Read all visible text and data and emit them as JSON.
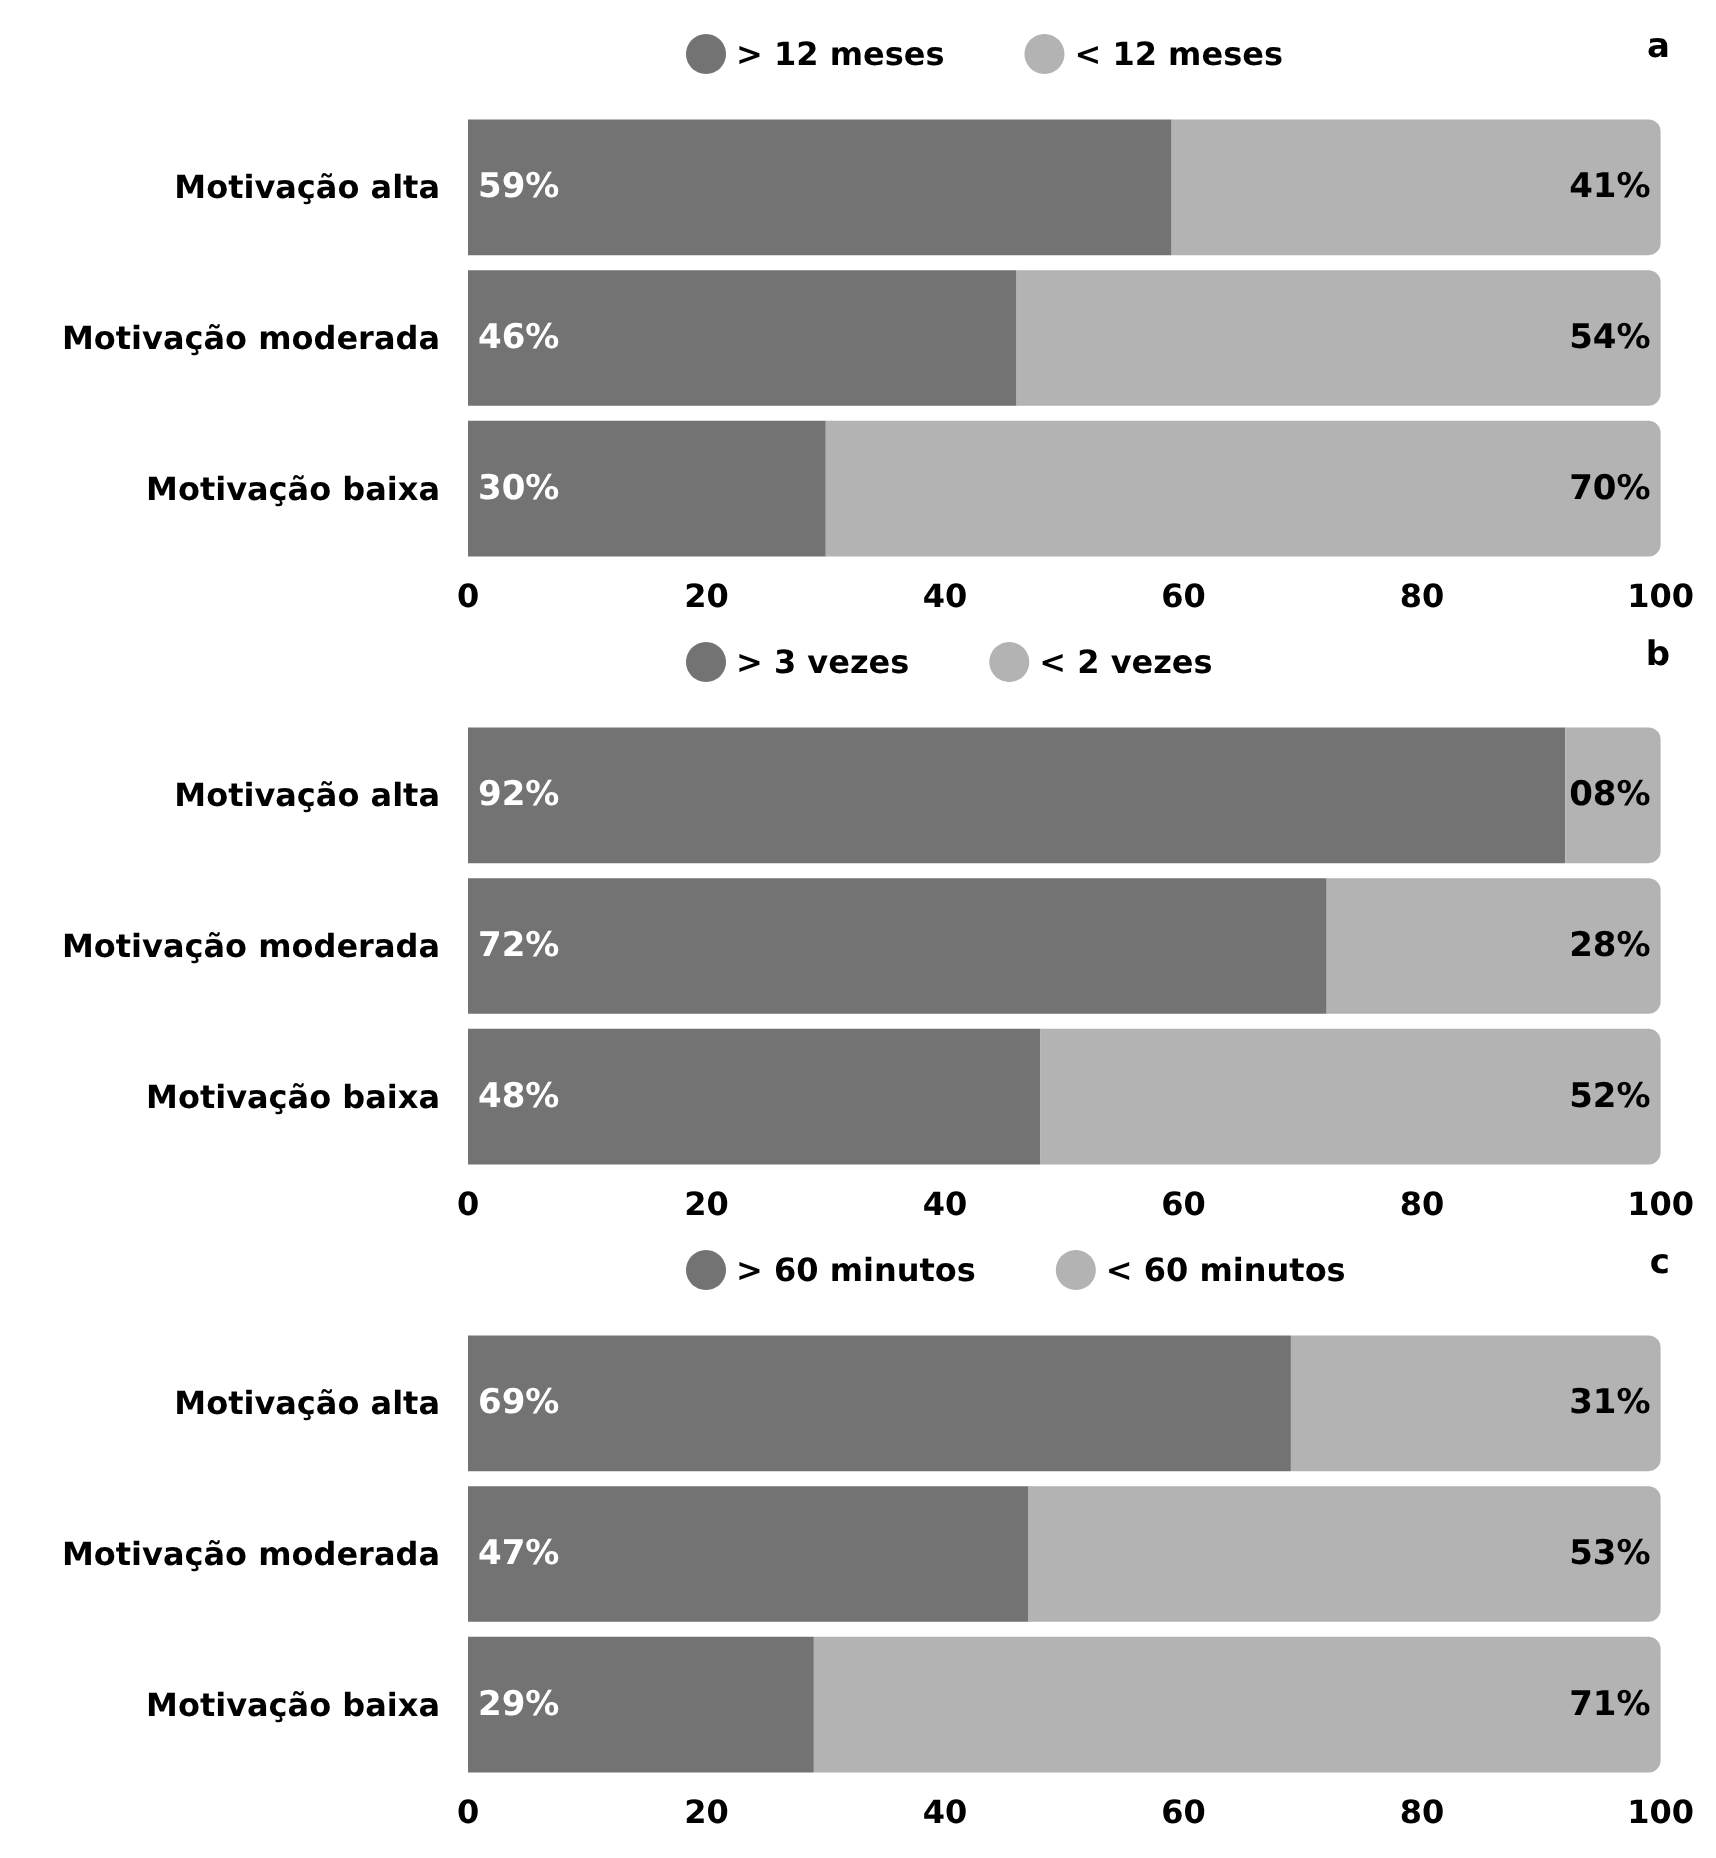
{
  "chart_data": [
    {
      "type": "bar",
      "title": "a",
      "orientation": "horizontal",
      "stacked": true,
      "categories": [
        "Motivação alta",
        "Motivação moderada",
        "Motivação baixa"
      ],
      "series": [
        {
          "name": "> 12 meses",
          "color": "#737373",
          "values": [
            59,
            46,
            30
          ],
          "value_labels": [
            "59%",
            "46%",
            "30%"
          ]
        },
        {
          "name": "< 12 meses",
          "color": "#b3b3b3",
          "values": [
            41,
            54,
            70
          ],
          "value_labels": [
            "41%",
            "54%",
            "70%"
          ]
        }
      ],
      "xlim": [
        0,
        100
      ],
      "xticks": [
        0,
        20,
        40,
        60,
        80,
        100
      ],
      "grid": false,
      "legend": "top"
    },
    {
      "type": "bar",
      "title": "b",
      "orientation": "horizontal",
      "stacked": true,
      "categories": [
        "Motivação alta",
        "Motivação moderada",
        "Motivação baixa"
      ],
      "series": [
        {
          "name": "> 3 vezes",
          "color": "#737373",
          "values": [
            92,
            72,
            48
          ],
          "value_labels": [
            "92%",
            "72%",
            "48%"
          ]
        },
        {
          "name": "< 2 vezes",
          "color": "#b3b3b3",
          "values": [
            8,
            28,
            52
          ],
          "value_labels": [
            "08%",
            "28%",
            "52%"
          ]
        }
      ],
      "xlim": [
        0,
        100
      ],
      "xticks": [
        0,
        20,
        40,
        60,
        80,
        100
      ],
      "grid": false,
      "legend": "top"
    },
    {
      "type": "bar",
      "title": "c",
      "orientation": "horizontal",
      "stacked": true,
      "categories": [
        "Motivação alta",
        "Motivação moderada",
        "Motivação baixa"
      ],
      "series": [
        {
          "name": "> 60 minutos",
          "color": "#737373",
          "values": [
            69,
            47,
            29
          ],
          "value_labels": [
            "69%",
            "47%",
            "29%"
          ]
        },
        {
          "name": "< 60 minutos",
          "color": "#b3b3b3",
          "values": [
            31,
            53,
            71
          ],
          "value_labels": [
            "31%",
            "53%",
            "71%"
          ]
        }
      ],
      "xlim": [
        0,
        100
      ],
      "xticks": [
        0,
        20,
        40,
        60,
        80,
        100
      ],
      "grid": false,
      "legend": "top"
    }
  ]
}
